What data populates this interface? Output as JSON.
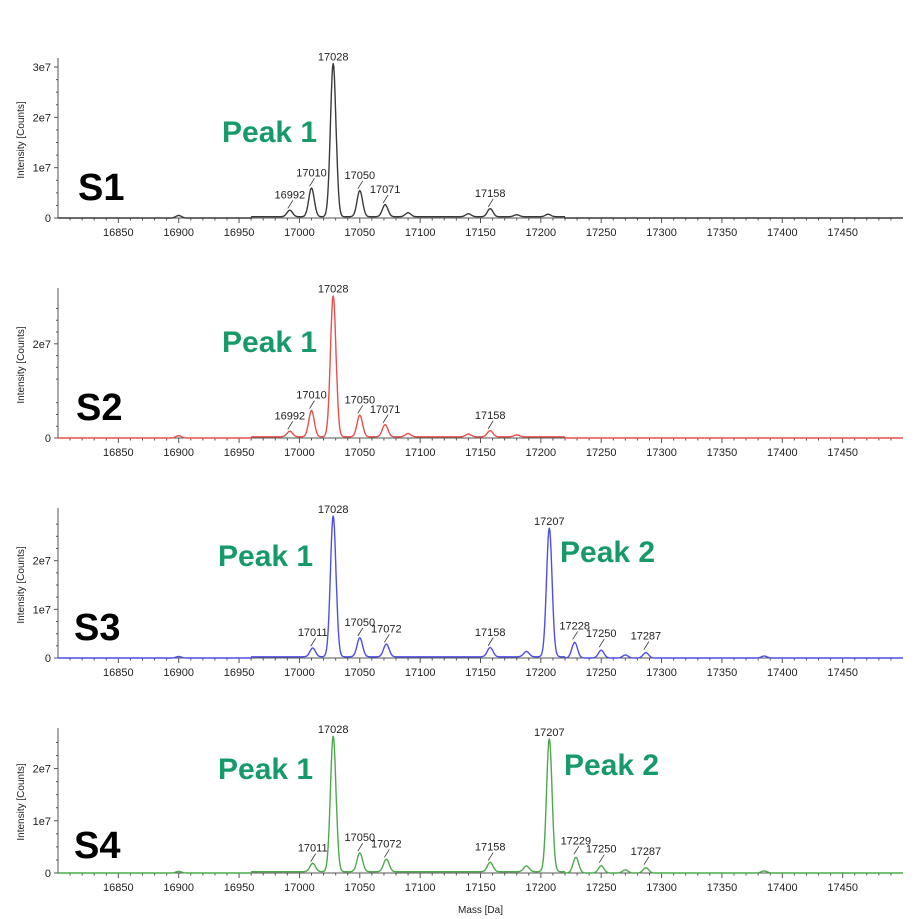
{
  "chart_data": [
    {
      "type": "line",
      "panel_label": "S1",
      "color": "#3a3a3a",
      "xlabel": "",
      "ylabel": "Intensity [Counts]",
      "xlim": [
        16800,
        17500
      ],
      "xticks": [
        16850,
        16900,
        16950,
        17000,
        17050,
        17100,
        17150,
        17200,
        17250,
        17300,
        17350,
        17400,
        17450
      ],
      "ylim": [
        0,
        31000000
      ],
      "yticks": [
        {
          "value": 0,
          "label": "0"
        },
        {
          "value": 10000000,
          "label": "1e7"
        },
        {
          "value": 20000000,
          "label": "2e7"
        },
        {
          "value": 30000000,
          "label": "3e7"
        }
      ],
      "peaks": [
        {
          "mass": 16900,
          "intensity": 500000,
          "label": ""
        },
        {
          "mass": 16992,
          "intensity": 1300000,
          "label": "16992"
        },
        {
          "mass": 17010,
          "intensity": 5700000,
          "label": "17010"
        },
        {
          "mass": 17028,
          "intensity": 30500000,
          "label": "17028"
        },
        {
          "mass": 17050,
          "intensity": 5200000,
          "label": "17050"
        },
        {
          "mass": 17071,
          "intensity": 2400000,
          "label": "17071"
        },
        {
          "mass": 17090,
          "intensity": 800000,
          "label": ""
        },
        {
          "mass": 17140,
          "intensity": 600000,
          "label": ""
        },
        {
          "mass": 17158,
          "intensity": 1600000,
          "label": "17158"
        },
        {
          "mass": 17180,
          "intensity": 400000,
          "label": ""
        },
        {
          "mass": 17206,
          "intensity": 500000,
          "label": ""
        }
      ],
      "annotations": [
        "Peak 1"
      ]
    },
    {
      "type": "line",
      "panel_label": "S2",
      "color": "#e8504d",
      "xlabel": "",
      "ylabel": "Intensity [Counts]",
      "xlim": [
        16800,
        17500
      ],
      "xticks": [
        16850,
        16900,
        16950,
        17000,
        17050,
        17100,
        17150,
        17200,
        17250,
        17300,
        17350,
        17400,
        17450
      ],
      "ylim": [
        0,
        31000000
      ],
      "yticks": [
        {
          "value": 0,
          "label": "0"
        },
        {
          "value": 20000000,
          "label": "2e7"
        }
      ],
      "peaks": [
        {
          "mass": 16900,
          "intensity": 500000,
          "label": ""
        },
        {
          "mass": 16992,
          "intensity": 1200000,
          "label": "16992"
        },
        {
          "mass": 17010,
          "intensity": 5600000,
          "label": "17010"
        },
        {
          "mass": 17028,
          "intensity": 30000000,
          "label": "17028"
        },
        {
          "mass": 17050,
          "intensity": 4600000,
          "label": "17050"
        },
        {
          "mass": 17071,
          "intensity": 2600000,
          "label": "17071"
        },
        {
          "mass": 17090,
          "intensity": 700000,
          "label": ""
        },
        {
          "mass": 17140,
          "intensity": 600000,
          "label": ""
        },
        {
          "mass": 17158,
          "intensity": 1300000,
          "label": "17158"
        },
        {
          "mass": 17180,
          "intensity": 400000,
          "label": ""
        }
      ],
      "annotations": [
        "Peak 1"
      ]
    },
    {
      "type": "line",
      "panel_label": "S3",
      "color": "#4f4fe8",
      "xlabel": "",
      "ylabel": "Intensity [Counts]",
      "xlim": [
        16800,
        17500
      ],
      "xticks": [
        16850,
        16900,
        16950,
        17000,
        17050,
        17100,
        17150,
        17200,
        17250,
        17300,
        17350,
        17400,
        17450
      ],
      "ylim": [
        0,
        30000000
      ],
      "yticks": [
        {
          "value": 0,
          "label": "0"
        },
        {
          "value": 10000000,
          "label": "1e7"
        },
        {
          "value": 20000000,
          "label": "2e7"
        }
      ],
      "peaks": [
        {
          "mass": 16900,
          "intensity": 300000,
          "label": ""
        },
        {
          "mass": 17011,
          "intensity": 1800000,
          "label": "17011"
        },
        {
          "mass": 17028,
          "intensity": 29000000,
          "label": "17028"
        },
        {
          "mass": 17050,
          "intensity": 3900000,
          "label": "17050"
        },
        {
          "mass": 17072,
          "intensity": 2600000,
          "label": "17072"
        },
        {
          "mass": 17158,
          "intensity": 1900000,
          "label": "17158"
        },
        {
          "mass": 17188,
          "intensity": 1100000,
          "label": ""
        },
        {
          "mass": 17207,
          "intensity": 26500000,
          "label": "17207"
        },
        {
          "mass": 17228,
          "intensity": 3200000,
          "label": "17228"
        },
        {
          "mass": 17250,
          "intensity": 1600000,
          "label": "17250"
        },
        {
          "mass": 17270,
          "intensity": 600000,
          "label": ""
        },
        {
          "mass": 17287,
          "intensity": 1100000,
          "label": "17287"
        },
        {
          "mass": 17385,
          "intensity": 400000,
          "label": ""
        }
      ],
      "annotations": [
        "Peak 1",
        "Peak 2"
      ]
    },
    {
      "type": "line",
      "panel_label": "S4",
      "color": "#4caa4c",
      "xlabel": "Mass [Da]",
      "ylabel": "Intensity [Counts]",
      "xlim": [
        16800,
        17500
      ],
      "xticks": [
        16850,
        16900,
        16950,
        17000,
        17050,
        17100,
        17150,
        17200,
        17250,
        17300,
        17350,
        17400,
        17450
      ],
      "ylim": [
        0,
        27000000
      ],
      "yticks": [
        {
          "value": 0,
          "label": "0"
        },
        {
          "value": 10000000,
          "label": "1e7"
        },
        {
          "value": 20000000,
          "label": "2e7"
        }
      ],
      "peaks": [
        {
          "mass": 16900,
          "intensity": 300000,
          "label": ""
        },
        {
          "mass": 17011,
          "intensity": 1600000,
          "label": "17011"
        },
        {
          "mass": 17028,
          "intensity": 26000000,
          "label": "17028"
        },
        {
          "mass": 17050,
          "intensity": 3600000,
          "label": "17050"
        },
        {
          "mass": 17072,
          "intensity": 2400000,
          "label": "17072"
        },
        {
          "mass": 17158,
          "intensity": 1800000,
          "label": "17158"
        },
        {
          "mass": 17188,
          "intensity": 1100000,
          "label": ""
        },
        {
          "mass": 17207,
          "intensity": 25500000,
          "label": "17207"
        },
        {
          "mass": 17229,
          "intensity": 3000000,
          "label": "17229"
        },
        {
          "mass": 17250,
          "intensity": 1400000,
          "label": "17250"
        },
        {
          "mass": 17270,
          "intensity": 600000,
          "label": ""
        },
        {
          "mass": 17287,
          "intensity": 1000000,
          "label": "17287"
        },
        {
          "mass": 17385,
          "intensity": 400000,
          "label": ""
        }
      ],
      "annotations": [
        "Peak 1",
        "Peak 2"
      ]
    }
  ]
}
